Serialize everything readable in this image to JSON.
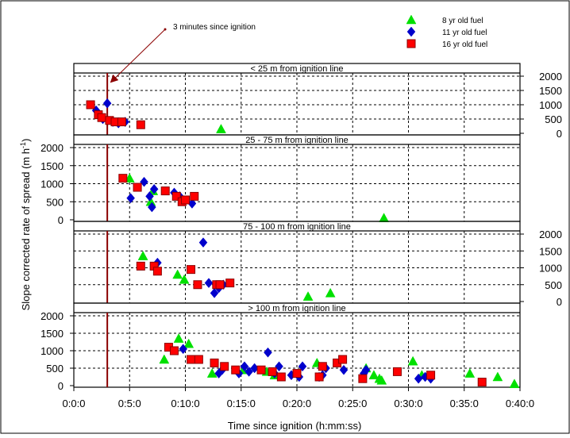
{
  "chart_data": {
    "type": "scatter",
    "xlabel": "Time since ignition (h:mm:ss)",
    "ylabel_main": "Slope corrected rate of spread (m h",
    "ylabel_sup": "-1",
    "ylabel_close": ")",
    "x_ticks": [
      "0:0:0",
      "0:5:0",
      "0:10:0",
      "0:15:0",
      "0:20:0",
      "0:25:0",
      "0:30:0",
      "0:35:0",
      "0:40:0"
    ],
    "xlim_minutes": [
      0,
      40
    ],
    "annotation": {
      "text": "3 minutes since ignition",
      "x_minutes": 3,
      "line_color": "#8b0000"
    },
    "legend": {
      "placement": "top-right",
      "entries": [
        {
          "name": "8 yr old fuel",
          "marker": "triangle",
          "color": "#00e000"
        },
        {
          "name": "11 yr old fuel",
          "marker": "diamond",
          "color": "#0000cc"
        },
        {
          "name": "16 yr old fuel",
          "marker": "square",
          "color": "#ff0000"
        }
      ]
    },
    "panels": [
      {
        "title": "< 25 m from ignition line",
        "ylim": [
          0,
          2000
        ],
        "y_ticks": [
          "0",
          "500",
          "1000",
          "1500",
          "2000"
        ],
        "y_axis_side": "right",
        "series": [
          {
            "name": "8 yr old fuel",
            "points": [
              [
                13.2,
                150
              ]
            ]
          },
          {
            "name": "11 yr old fuel",
            "points": [
              [
                2.0,
                800
              ],
              [
                2.3,
                600
              ],
              [
                2.6,
                500
              ],
              [
                3.0,
                1050
              ],
              [
                3.5,
                400
              ],
              [
                4.0,
                350
              ],
              [
                4.6,
                400
              ]
            ]
          },
          {
            "name": "16 yr old fuel",
            "points": [
              [
                1.5,
                1000
              ],
              [
                2.2,
                650
              ],
              [
                2.5,
                550
              ],
              [
                3.2,
                450
              ],
              [
                3.7,
                400
              ],
              [
                4.3,
                400
              ],
              [
                6.0,
                300
              ]
            ]
          }
        ]
      },
      {
        "title": "25 - 75 m from ignition line",
        "ylim": [
          0,
          2000
        ],
        "y_ticks": [
          "0",
          "500",
          "1000",
          "1500",
          "2000"
        ],
        "y_axis_side": "left",
        "series": [
          {
            "name": "8 yr old fuel",
            "points": [
              [
                5.0,
                1150
              ],
              [
                6.9,
                500
              ],
              [
                7.1,
                800
              ],
              [
                27.8,
                50
              ]
            ]
          },
          {
            "name": "11 yr old fuel",
            "points": [
              [
                5.1,
                600
              ],
              [
                6.3,
                1050
              ],
              [
                6.8,
                650
              ],
              [
                7.0,
                350
              ],
              [
                7.2,
                850
              ],
              [
                9.0,
                750
              ],
              [
                9.5,
                650
              ],
              [
                10.6,
                450
              ]
            ]
          },
          {
            "name": "16 yr old fuel",
            "points": [
              [
                4.4,
                1150
              ],
              [
                5.7,
                900
              ],
              [
                8.2,
                800
              ],
              [
                9.2,
                650
              ],
              [
                9.7,
                500
              ],
              [
                10.0,
                550
              ],
              [
                10.8,
                650
              ]
            ]
          }
        ]
      },
      {
        "title": "75 - 100  m from ignition line",
        "ylim": [
          0,
          2000
        ],
        "y_ticks": [
          "0",
          "500",
          "1000",
          "1500",
          "2000"
        ],
        "y_axis_side": "right",
        "series": [
          {
            "name": "8 yr old fuel",
            "points": [
              [
                6.2,
                1350
              ],
              [
                9.3,
                800
              ],
              [
                9.9,
                650
              ],
              [
                21.0,
                150
              ],
              [
                23.0,
                250
              ]
            ]
          },
          {
            "name": "11 yr old fuel",
            "points": [
              [
                7.5,
                1150
              ],
              [
                11.6,
                1750
              ],
              [
                12.1,
                550
              ],
              [
                12.6,
                250
              ],
              [
                13.0,
                400
              ],
              [
                13.4,
                500
              ]
            ]
          },
          {
            "name": "16 yr old fuel",
            "points": [
              [
                6.0,
                1050
              ],
              [
                7.2,
                1050
              ],
              [
                7.5,
                900
              ],
              [
                10.5,
                950
              ],
              [
                11.1,
                500
              ],
              [
                12.8,
                500
              ],
              [
                13.1,
                500
              ],
              [
                14.0,
                550
              ]
            ]
          }
        ]
      },
      {
        "title": "> 100 m from ignition line",
        "ylim": [
          0,
          2000
        ],
        "y_ticks": [
          "0",
          "500",
          "1000",
          "1500",
          "2000"
        ],
        "y_axis_side": "left",
        "series": [
          {
            "name": "8 yr old fuel",
            "points": [
              [
                8.1,
                750
              ],
              [
                9.4,
                1350
              ],
              [
                10.3,
                1200
              ],
              [
                12.4,
                350
              ],
              [
                15.2,
                450
              ],
              [
                17.3,
                400
              ],
              [
                18.0,
                300
              ],
              [
                21.8,
                650
              ],
              [
                26.2,
                500
              ],
              [
                26.9,
                300
              ],
              [
                27.4,
                200
              ],
              [
                27.6,
                150
              ],
              [
                30.4,
                700
              ],
              [
                31.2,
                300
              ],
              [
                35.5,
                350
              ],
              [
                38.0,
                250
              ],
              [
                39.5,
                50
              ]
            ]
          },
          {
            "name": "11 yr old fuel",
            "points": [
              [
                9.8,
                1050
              ],
              [
                13.0,
                350
              ],
              [
                13.3,
                450
              ],
              [
                14.8,
                350
              ],
              [
                15.3,
                550
              ],
              [
                15.7,
                400
              ],
              [
                16.2,
                500
              ],
              [
                17.4,
                950
              ],
              [
                18.0,
                350
              ],
              [
                18.4,
                550
              ],
              [
                19.5,
                300
              ],
              [
                20.2,
                250
              ],
              [
                20.5,
                550
              ],
              [
                22.0,
                250
              ],
              [
                22.3,
                300
              ],
              [
                22.6,
                500
              ],
              [
                24.2,
                450
              ],
              [
                26.0,
                350
              ],
              [
                26.2,
                450
              ],
              [
                30.9,
                200
              ],
              [
                31.5,
                250
              ],
              [
                32.0,
                200
              ]
            ]
          },
          {
            "name": "16 yr old fuel",
            "points": [
              [
                8.5,
                1100
              ],
              [
                9.0,
                1000
              ],
              [
                10.5,
                750
              ],
              [
                11.2,
                750
              ],
              [
                12.6,
                650
              ],
              [
                13.5,
                550
              ],
              [
                14.5,
                450
              ],
              [
                16.8,
                450
              ],
              [
                17.8,
                400
              ],
              [
                18.6,
                250
              ],
              [
                20.0,
                350
              ],
              [
                22.0,
                250
              ],
              [
                22.3,
                550
              ],
              [
                23.6,
                650
              ],
              [
                24.1,
                750
              ],
              [
                25.9,
                200
              ],
              [
                29.0,
                400
              ],
              [
                32.0,
                300
              ],
              [
                36.6,
                100
              ]
            ]
          }
        ]
      }
    ]
  }
}
